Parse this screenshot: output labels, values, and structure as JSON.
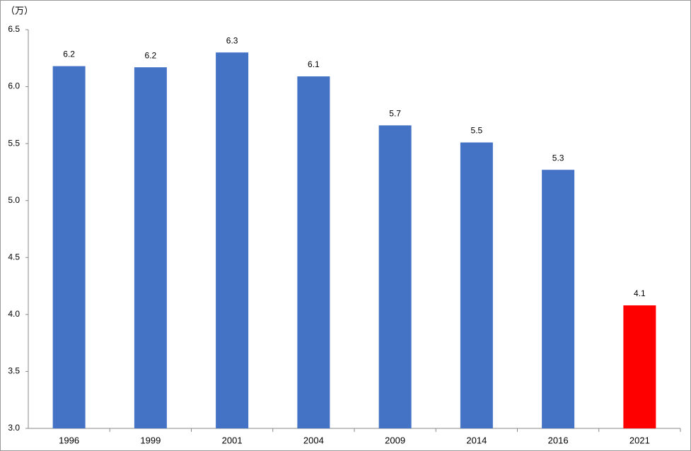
{
  "chart_data": {
    "type": "bar",
    "y_axis_label": "（万）",
    "categories": [
      "1996",
      "1999",
      "2001",
      "2004",
      "2009",
      "2014",
      "2016",
      "2021"
    ],
    "values": [
      6.18,
      6.17,
      6.3,
      6.09,
      5.66,
      5.51,
      5.27,
      4.08
    ],
    "value_labels": [
      "6.2",
      "6.2",
      "6.3",
      "6.1",
      "5.7",
      "5.5",
      "5.3",
      "4.1"
    ],
    "colors": [
      "#4472c4",
      "#4472c4",
      "#4472c4",
      "#4472c4",
      "#4472c4",
      "#4472c4",
      "#4472c4",
      "#ff0000"
    ],
    "ylim": [
      3.0,
      6.5
    ],
    "yticks": [
      {
        "value": 3,
        "label": "3.0"
      },
      {
        "value": 3.5,
        "label": "3.5"
      },
      {
        "value": 4,
        "label": "4.0"
      },
      {
        "value": 4.5,
        "label": "4.5"
      },
      {
        "value": 5,
        "label": "5.0"
      },
      {
        "value": 5.5,
        "label": "5.5"
      },
      {
        "value": 6,
        "label": "6.0"
      },
      {
        "value": 6.5,
        "label": "6.5"
      }
    ],
    "grid": false
  }
}
